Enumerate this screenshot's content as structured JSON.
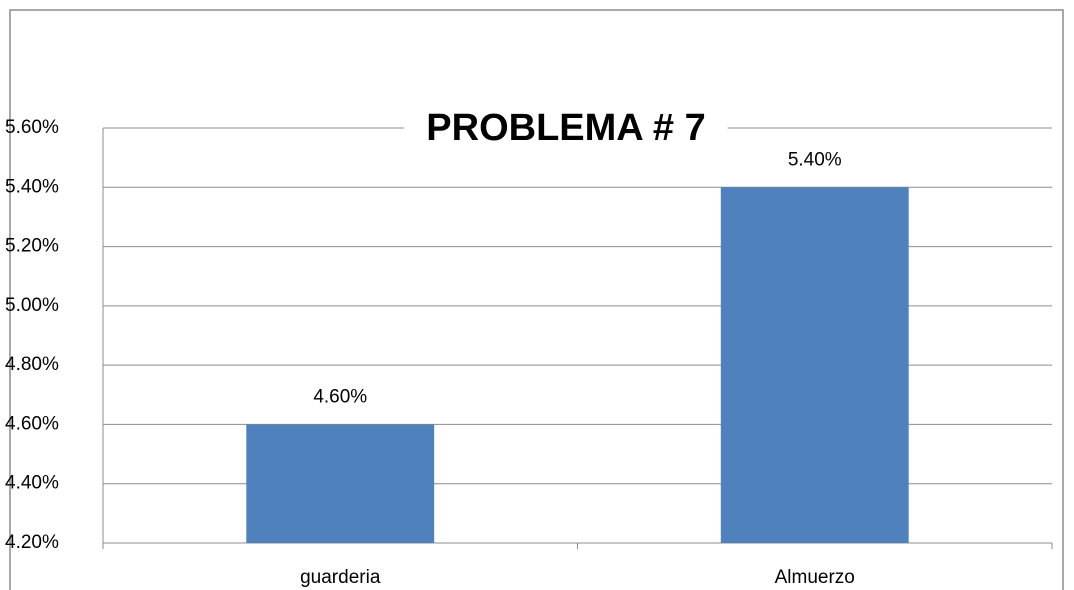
{
  "chart_data": {
    "type": "bar",
    "title": "PROBLEMA # 7",
    "categories": [
      "guarderia",
      "Almuerzo"
    ],
    "values": [
      4.6,
      5.4
    ],
    "value_labels": [
      "4.60%",
      "5.40%"
    ],
    "color": "#4f81bd",
    "ylim": [
      4.2,
      5.6
    ],
    "yticks": [
      {
        "value": 4.2,
        "label": "4.20%"
      },
      {
        "value": 4.4,
        "label": "4.40%"
      },
      {
        "value": 4.6,
        "label": "4.60%"
      },
      {
        "value": 4.8,
        "label": "4.80%"
      },
      {
        "value": 5.0,
        "label": "5.00%"
      },
      {
        "value": 5.2,
        "label": "5.20%"
      },
      {
        "value": 5.4,
        "label": "5.40%"
      },
      {
        "value": 5.6,
        "label": "5.60%"
      }
    ],
    "grid": true
  }
}
